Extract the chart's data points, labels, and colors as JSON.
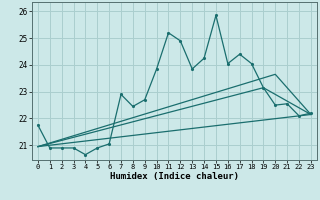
{
  "title": "",
  "xlabel": "Humidex (Indice chaleur)",
  "bg_color": "#cce8e8",
  "grid_color": "#aacece",
  "line_color": "#1a6e6e",
  "xlim": [
    -0.5,
    23.5
  ],
  "ylim": [
    20.45,
    26.35
  ],
  "yticks": [
    21,
    22,
    23,
    24,
    25,
    26
  ],
  "xticks": [
    0,
    1,
    2,
    3,
    4,
    5,
    6,
    7,
    8,
    9,
    10,
    11,
    12,
    13,
    14,
    15,
    16,
    17,
    18,
    19,
    20,
    21,
    22,
    23
  ],
  "line1_x": [
    0,
    1,
    2,
    3,
    4,
    5,
    6,
    7,
    8,
    9,
    10,
    11,
    12,
    13,
    14,
    15,
    16,
    17,
    18,
    19,
    20,
    21,
    22,
    23
  ],
  "line1_y": [
    21.75,
    20.9,
    20.9,
    20.9,
    20.65,
    20.9,
    21.05,
    22.9,
    22.45,
    22.7,
    23.85,
    25.2,
    24.9,
    23.85,
    24.25,
    25.85,
    24.05,
    24.4,
    24.05,
    23.15,
    22.5,
    22.55,
    22.1,
    22.2
  ],
  "line2_x": [
    0,
    23
  ],
  "line2_y": [
    20.95,
    22.15
  ],
  "line3_x": [
    0,
    19,
    23
  ],
  "line3_y": [
    20.95,
    23.15,
    22.15
  ],
  "line4_x": [
    0,
    20,
    23
  ],
  "line4_y": [
    20.95,
    23.65,
    22.15
  ]
}
